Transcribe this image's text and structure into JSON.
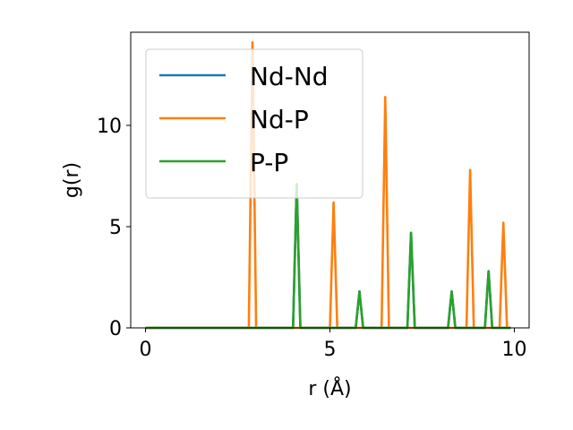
{
  "chart_data": {
    "type": "line",
    "title": "",
    "xlabel": "r (Å)",
    "ylabel": "g(r)",
    "xlim": [
      -0.4,
      10.4
    ],
    "ylim": [
      0,
      14.6
    ],
    "xticks": [
      0,
      5,
      10
    ],
    "yticks": [
      0,
      5,
      10
    ],
    "grid": false,
    "legend_position": "upper-left",
    "peak_halfwidth": 0.1,
    "x_range": [
      0,
      9.9
    ],
    "series": [
      {
        "name": "Nd-Nd",
        "color": "#1f77b4",
        "peaks": [
          [
            4.1,
            7.1
          ],
          [
            5.8,
            1.8
          ],
          [
            7.2,
            4.7
          ],
          [
            8.3,
            1.8
          ],
          [
            9.3,
            2.8
          ]
        ]
      },
      {
        "name": "Nd-P",
        "color": "#ff7f0e",
        "peaks": [
          [
            2.9,
            14.1
          ],
          [
            5.1,
            6.2
          ],
          [
            6.5,
            11.4
          ],
          [
            8.8,
            7.8
          ],
          [
            9.7,
            5.2
          ]
        ]
      },
      {
        "name": "P-P",
        "color": "#2ca02c",
        "peaks": [
          [
            4.1,
            7.1
          ],
          [
            5.8,
            1.8
          ],
          [
            7.2,
            4.7
          ],
          [
            8.3,
            1.8
          ],
          [
            9.3,
            2.8
          ]
        ]
      }
    ]
  }
}
